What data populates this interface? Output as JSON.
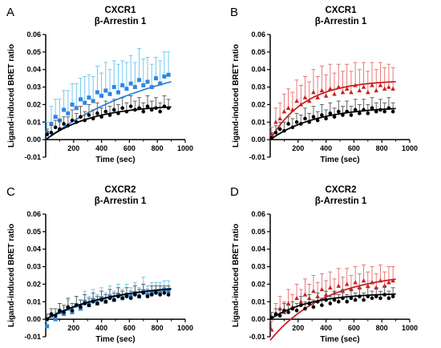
{
  "chart_data": [
    {
      "type": "scatter",
      "panel_label": "A",
      "title": "CXCR1",
      "subtitle": "β-Arrestin 1",
      "xlabel": "Time (sec)",
      "ylabel": "Ligand-induced BRET ratio",
      "xlim": [
        0,
        1000
      ],
      "ylim": [
        -0.01,
        0.06
      ],
      "x_ticks": [
        "200",
        "400",
        "600",
        "800",
        "1000"
      ],
      "y_ticks": [
        "-0.01",
        "0.00",
        "0.01",
        "0.02",
        "0.03",
        "0.04",
        "0.05",
        "0.06"
      ],
      "grid": false,
      "series": [
        {
          "color": "#2e86de",
          "err_color": "#66c4ec",
          "marker": "square",
          "fit": {
            "plateau": 0.05,
            "k": 0.0012
          },
          "x": [
            10,
            40,
            70,
            100,
            130,
            160,
            190,
            220,
            250,
            280,
            310,
            340,
            370,
            400,
            430,
            460,
            490,
            520,
            550,
            580,
            610,
            640,
            670,
            700,
            730,
            760,
            790,
            820,
            850,
            880
          ],
          "y": [
            0.004,
            0.009,
            0.013,
            0.011,
            0.017,
            0.015,
            0.02,
            0.018,
            0.023,
            0.021,
            0.024,
            0.022,
            0.027,
            0.025,
            0.028,
            0.026,
            0.03,
            0.027,
            0.031,
            0.029,
            0.032,
            0.03,
            0.034,
            0.031,
            0.033,
            0.03,
            0.035,
            0.032,
            0.036,
            0.037
          ],
          "err": [
            0.006,
            0.01,
            0.01,
            0.012,
            0.011,
            0.013,
            0.012,
            0.014,
            0.012,
            0.015,
            0.013,
            0.014,
            0.015,
            0.013,
            0.016,
            0.014,
            0.015,
            0.016,
            0.014,
            0.015,
            0.016,
            0.014,
            0.018,
            0.015,
            0.014,
            0.013,
            0.012,
            0.013,
            0.014,
            0.013
          ]
        },
        {
          "color": "#000000",
          "err_color": "#555555",
          "marker": "circle",
          "fit": {
            "plateau": 0.02,
            "k": 0.003
          },
          "x": [
            10,
            40,
            70,
            100,
            130,
            160,
            190,
            220,
            250,
            280,
            310,
            340,
            370,
            400,
            430,
            460,
            490,
            520,
            550,
            580,
            610,
            640,
            670,
            700,
            730,
            760,
            790,
            820,
            850,
            880
          ],
          "y": [
            0.003,
            0.004,
            0.007,
            0.006,
            0.009,
            0.008,
            0.011,
            0.01,
            0.013,
            0.011,
            0.014,
            0.012,
            0.015,
            0.013,
            0.016,
            0.014,
            0.017,
            0.015,
            0.018,
            0.016,
            0.019,
            0.017,
            0.018,
            0.016,
            0.019,
            0.017,
            0.018,
            0.016,
            0.019,
            0.018
          ],
          "err": [
            0.003,
            0.004,
            0.004,
            0.005,
            0.004,
            0.005,
            0.006,
            0.005,
            0.006,
            0.005,
            0.006,
            0.005,
            0.006,
            0.005,
            0.006,
            0.005,
            0.006,
            0.005,
            0.006,
            0.005,
            0.006,
            0.005,
            0.006,
            0.005,
            0.006,
            0.005,
            0.006,
            0.005,
            0.006,
            0.005
          ]
        }
      ]
    },
    {
      "type": "scatter",
      "panel_label": "B",
      "title": "CXCR1",
      "subtitle": "β-Arrestin 1",
      "xlabel": "Time (sec)",
      "ylabel": "Ligand-induced BRET ratio",
      "xlim": [
        0,
        1000
      ],
      "ylim": [
        -0.01,
        0.06
      ],
      "x_ticks": [
        "200",
        "400",
        "600",
        "800",
        "1000"
      ],
      "y_ticks": [
        "-0.01",
        "0.00",
        "0.01",
        "0.02",
        "0.03",
        "0.04",
        "0.05",
        "0.06"
      ],
      "grid": false,
      "series": [
        {
          "color": "#cc2020",
          "err_color": "#e86a6a",
          "marker": "triangle",
          "fit": {
            "plateau": 0.034,
            "k": 0.004
          },
          "x": [
            10,
            40,
            70,
            100,
            130,
            160,
            190,
            220,
            250,
            280,
            310,
            340,
            370,
            400,
            430,
            460,
            490,
            520,
            550,
            580,
            610,
            640,
            670,
            700,
            730,
            760,
            790,
            820,
            850,
            880
          ],
          "y": [
            0.003,
            0.01,
            0.012,
            0.016,
            0.018,
            0.017,
            0.022,
            0.02,
            0.024,
            0.022,
            0.027,
            0.024,
            0.028,
            0.025,
            0.029,
            0.026,
            0.03,
            0.027,
            0.029,
            0.027,
            0.031,
            0.028,
            0.03,
            0.027,
            0.031,
            0.028,
            0.031,
            0.029,
            0.03,
            0.029
          ],
          "err": [
            0.004,
            0.008,
            0.009,
            0.01,
            0.011,
            0.01,
            0.012,
            0.011,
            0.012,
            0.011,
            0.013,
            0.012,
            0.014,
            0.012,
            0.014,
            0.012,
            0.013,
            0.012,
            0.014,
            0.012,
            0.013,
            0.012,
            0.014,
            0.012,
            0.013,
            0.012,
            0.013,
            0.012,
            0.013,
            0.012
          ]
        },
        {
          "color": "#000000",
          "err_color": "#555555",
          "marker": "circle",
          "fit": {
            "plateau": 0.019,
            "k": 0.003
          },
          "x": [
            10,
            40,
            70,
            100,
            130,
            160,
            190,
            220,
            250,
            280,
            310,
            340,
            370,
            400,
            430,
            460,
            490,
            520,
            550,
            580,
            610,
            640,
            670,
            700,
            730,
            760,
            790,
            820,
            850,
            880
          ],
          "y": [
            0.001,
            0.004,
            0.006,
            0.005,
            0.009,
            0.007,
            0.01,
            0.009,
            0.012,
            0.01,
            0.013,
            0.011,
            0.014,
            0.012,
            0.015,
            0.013,
            0.016,
            0.014,
            0.016,
            0.014,
            0.017,
            0.015,
            0.017,
            0.015,
            0.018,
            0.016,
            0.017,
            0.016,
            0.018,
            0.016
          ],
          "err": [
            0.003,
            0.004,
            0.004,
            0.005,
            0.004,
            0.005,
            0.005,
            0.005,
            0.006,
            0.005,
            0.006,
            0.005,
            0.006,
            0.005,
            0.006,
            0.005,
            0.006,
            0.005,
            0.006,
            0.005,
            0.006,
            0.005,
            0.006,
            0.005,
            0.006,
            0.005,
            0.006,
            0.005,
            0.006,
            0.005
          ]
        }
      ]
    },
    {
      "type": "scatter",
      "panel_label": "C",
      "title": "CXCR2",
      "subtitle": "β-Arrestin 1",
      "xlabel": "Time (sec)",
      "ylabel": "Ligand-induced BRET ratio",
      "xlim": [
        0,
        1000
      ],
      "ylim": [
        -0.01,
        0.06
      ],
      "x_ticks": [
        "200",
        "400",
        "600",
        "800",
        "1000"
      ],
      "y_ticks": [
        "-0.01",
        "0.00",
        "0.01",
        "0.02",
        "0.03",
        "0.04",
        "0.05",
        "0.06"
      ],
      "grid": false,
      "series": [
        {
          "color": "#2e86de",
          "err_color": "#66c4ec",
          "marker": "square",
          "fit": {
            "plateau": 0.022,
            "k": 0.0018
          },
          "x": [
            10,
            40,
            70,
            100,
            130,
            160,
            190,
            220,
            250,
            280,
            310,
            340,
            370,
            400,
            430,
            460,
            490,
            520,
            550,
            580,
            610,
            640,
            670,
            700,
            730,
            760,
            790,
            820,
            850,
            880
          ],
          "y": [
            -0.004,
            0.002,
            0.0,
            0.004,
            0.003,
            0.006,
            0.004,
            0.008,
            0.006,
            0.01,
            0.008,
            0.011,
            0.009,
            0.012,
            0.01,
            0.013,
            0.011,
            0.014,
            0.012,
            0.014,
            0.013,
            0.015,
            0.013,
            0.016,
            0.014,
            0.015,
            0.016,
            0.015,
            0.017,
            0.016
          ],
          "err": [
            0.003,
            0.004,
            0.004,
            0.005,
            0.004,
            0.005,
            0.005,
            0.005,
            0.005,
            0.006,
            0.005,
            0.006,
            0.005,
            0.006,
            0.005,
            0.006,
            0.005,
            0.006,
            0.005,
            0.006,
            0.005,
            0.006,
            0.005,
            0.008,
            0.005,
            0.006,
            0.005,
            0.006,
            0.005,
            0.006
          ]
        },
        {
          "color": "#000000",
          "err_color": "#555555",
          "marker": "circle",
          "fit": {
            "plateau": 0.02,
            "k": 0.0022
          },
          "x": [
            10,
            40,
            70,
            100,
            130,
            160,
            190,
            220,
            250,
            280,
            310,
            340,
            370,
            400,
            430,
            460,
            490,
            520,
            550,
            580,
            610,
            640,
            670,
            700,
            730,
            760,
            790,
            820,
            850,
            880
          ],
          "y": [
            0.0,
            0.003,
            0.002,
            0.005,
            0.004,
            0.007,
            0.005,
            0.008,
            0.007,
            0.009,
            0.008,
            0.01,
            0.009,
            0.011,
            0.01,
            0.012,
            0.011,
            0.013,
            0.012,
            0.013,
            0.012,
            0.014,
            0.013,
            0.015,
            0.013,
            0.014,
            0.015,
            0.014,
            0.015,
            0.014
          ],
          "err": [
            0.003,
            0.003,
            0.004,
            0.004,
            0.004,
            0.005,
            0.004,
            0.005,
            0.004,
            0.005,
            0.004,
            0.005,
            0.004,
            0.005,
            0.004,
            0.005,
            0.004,
            0.005,
            0.004,
            0.005,
            0.004,
            0.005,
            0.004,
            0.005,
            0.004,
            0.005,
            0.004,
            0.005,
            0.004,
            0.005
          ]
        }
      ]
    },
    {
      "type": "scatter",
      "panel_label": "D",
      "title": "CXCR2",
      "subtitle": "β-Arrestin 1",
      "xlabel": "Time (sec)",
      "ylabel": "Ligand-induced BRET ratio",
      "xlim": [
        0,
        1000
      ],
      "ylim": [
        -0.01,
        0.06
      ],
      "x_ticks": [
        "200",
        "400",
        "600",
        "800",
        "1000"
      ],
      "y_ticks": [
        "-0.01",
        "0.00",
        "0.01",
        "0.02",
        "0.03",
        "0.04",
        "0.05",
        "0.06"
      ],
      "grid": false,
      "series": [
        {
          "color": "#cc2020",
          "err_color": "#e86a6a",
          "marker": "triangle",
          "fit": {
            "plateau": 0.027,
            "k": 0.0025,
            "y0": -0.012
          },
          "x": [
            10,
            40,
            70,
            100,
            130,
            160,
            190,
            220,
            250,
            280,
            310,
            340,
            370,
            400,
            430,
            460,
            490,
            520,
            550,
            580,
            610,
            640,
            670,
            700,
            730,
            760,
            790,
            820,
            850,
            880
          ],
          "y": [
            -0.006,
            0.003,
            0.006,
            0.004,
            0.009,
            0.007,
            0.012,
            0.01,
            0.014,
            0.012,
            0.016,
            0.013,
            0.017,
            0.014,
            0.018,
            0.015,
            0.019,
            0.016,
            0.02,
            0.017,
            0.021,
            0.018,
            0.022,
            0.019,
            0.021,
            0.018,
            0.022,
            0.019,
            0.021,
            0.022
          ],
          "err": [
            0.005,
            0.006,
            0.007,
            0.006,
            0.008,
            0.007,
            0.008,
            0.007,
            0.009,
            0.008,
            0.009,
            0.008,
            0.009,
            0.008,
            0.009,
            0.008,
            0.01,
            0.008,
            0.009,
            0.008,
            0.009,
            0.008,
            0.009,
            0.008,
            0.009,
            0.008,
            0.009,
            0.008,
            0.009,
            0.008
          ]
        },
        {
          "color": "#000000",
          "err_color": "#555555",
          "marker": "circle",
          "fit": {
            "plateau": 0.015,
            "k": 0.0035
          },
          "x": [
            10,
            40,
            70,
            100,
            130,
            160,
            190,
            220,
            250,
            280,
            310,
            340,
            370,
            400,
            430,
            460,
            490,
            520,
            550,
            580,
            610,
            640,
            670,
            700,
            730,
            760,
            790,
            820,
            850,
            880
          ],
          "y": [
            0.001,
            0.003,
            0.002,
            0.005,
            0.004,
            0.006,
            0.005,
            0.008,
            0.006,
            0.009,
            0.007,
            0.01,
            0.008,
            0.011,
            0.009,
            0.011,
            0.01,
            0.012,
            0.01,
            0.012,
            0.011,
            0.013,
            0.011,
            0.013,
            0.012,
            0.013,
            0.012,
            0.014,
            0.012,
            0.013
          ],
          "err": [
            0.003,
            0.003,
            0.004,
            0.004,
            0.004,
            0.004,
            0.004,
            0.005,
            0.004,
            0.005,
            0.004,
            0.005,
            0.004,
            0.005,
            0.004,
            0.005,
            0.004,
            0.005,
            0.004,
            0.005,
            0.004,
            0.005,
            0.004,
            0.005,
            0.004,
            0.005,
            0.004,
            0.005,
            0.004,
            0.005
          ]
        }
      ]
    }
  ]
}
